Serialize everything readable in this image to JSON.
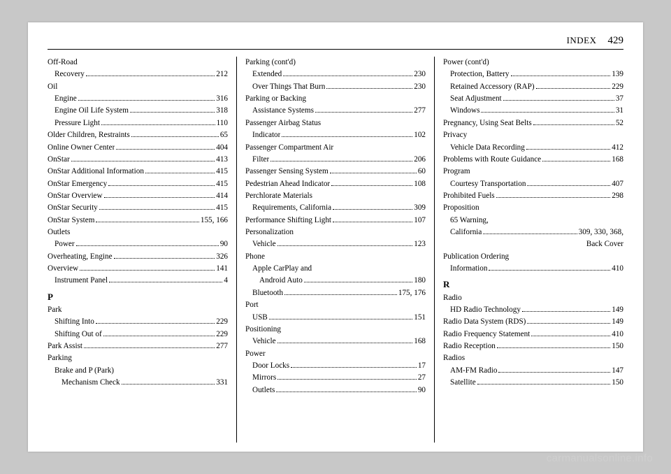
{
  "header": {
    "section": "INDEX",
    "page": "429"
  },
  "watermark": "carmanualsonline.info",
  "col1": [
    {
      "type": "plain",
      "text": "Off-Road"
    },
    {
      "type": "entry",
      "indent": 1,
      "label": "Recovery",
      "pg": "212"
    },
    {
      "type": "plain",
      "text": "Oil"
    },
    {
      "type": "entry",
      "indent": 1,
      "label": "Engine",
      "pg": "316"
    },
    {
      "type": "entry",
      "indent": 1,
      "label": "Engine Oil Life System",
      "pg": "318"
    },
    {
      "type": "entry",
      "indent": 1,
      "label": "Pressure Light",
      "pg": "110"
    },
    {
      "type": "entry",
      "indent": 0,
      "label": "Older Children, Restraints",
      "pg": "65"
    },
    {
      "type": "entry",
      "indent": 0,
      "label": "Online Owner Center",
      "pg": "404"
    },
    {
      "type": "entry",
      "indent": 0,
      "label": "OnStar",
      "pg": "413"
    },
    {
      "type": "entry",
      "indent": 0,
      "label": "OnStar Additional Information",
      "pg": "415"
    },
    {
      "type": "entry",
      "indent": 0,
      "label": "OnStar Emergency",
      "pg": "415"
    },
    {
      "type": "entry",
      "indent": 0,
      "label": "OnStar Overview",
      "pg": "414"
    },
    {
      "type": "entry",
      "indent": 0,
      "label": "OnStar Security",
      "pg": "415"
    },
    {
      "type": "entry",
      "indent": 0,
      "label": "OnStar System",
      "pg": "155, 166"
    },
    {
      "type": "plain",
      "text": "Outlets"
    },
    {
      "type": "entry",
      "indent": 1,
      "label": "Power",
      "pg": "90"
    },
    {
      "type": "entry",
      "indent": 0,
      "label": "Overheating, Engine",
      "pg": "326"
    },
    {
      "type": "entry",
      "indent": 0,
      "label": "Overview",
      "pg": "141"
    },
    {
      "type": "entry",
      "indent": 1,
      "label": "Instrument Panel",
      "pg": "4"
    },
    {
      "type": "letter",
      "text": "P"
    },
    {
      "type": "plain",
      "text": "Park"
    },
    {
      "type": "entry",
      "indent": 1,
      "label": "Shifting Into",
      "pg": "229"
    },
    {
      "type": "entry",
      "indent": 1,
      "label": "Shifting Out of",
      "pg": "229"
    },
    {
      "type": "entry",
      "indent": 0,
      "label": "Park Assist",
      "pg": "277"
    },
    {
      "type": "plain",
      "text": "Parking"
    },
    {
      "type": "plain-indent1",
      "text": "Brake and P (Park)"
    },
    {
      "type": "entry",
      "indent": 2,
      "label": "Mechanism Check",
      "pg": "331"
    }
  ],
  "col2": [
    {
      "type": "plain",
      "text": "Parking (cont'd)"
    },
    {
      "type": "entry",
      "indent": 1,
      "label": "Extended",
      "pg": "230"
    },
    {
      "type": "entry",
      "indent": 1,
      "label": "Over Things That Burn",
      "pg": "230"
    },
    {
      "type": "plain",
      "text": "Parking or Backing"
    },
    {
      "type": "entry",
      "indent": 1,
      "label": "Assistance Systems",
      "pg": "277"
    },
    {
      "type": "plain",
      "text": "Passenger Airbag Status"
    },
    {
      "type": "entry",
      "indent": 1,
      "label": "Indicator",
      "pg": "102"
    },
    {
      "type": "plain",
      "text": "Passenger Compartment Air"
    },
    {
      "type": "entry",
      "indent": 1,
      "label": "Filter",
      "pg": "206"
    },
    {
      "type": "entry",
      "indent": 0,
      "label": "Passenger Sensing System",
      "pg": "60"
    },
    {
      "type": "entry",
      "indent": 0,
      "label": "Pedestrian Ahead Indicator",
      "pg": "108"
    },
    {
      "type": "plain",
      "text": "Perchlorate Materials"
    },
    {
      "type": "entry",
      "indent": 1,
      "label": "Requirements, California",
      "pg": "309"
    },
    {
      "type": "entry",
      "indent": 0,
      "label": "Performance Shifting Light",
      "pg": "107"
    },
    {
      "type": "plain",
      "text": "Personalization"
    },
    {
      "type": "entry",
      "indent": 1,
      "label": "Vehicle",
      "pg": "123"
    },
    {
      "type": "plain",
      "text": "Phone"
    },
    {
      "type": "plain-indent1",
      "text": "Apple CarPlay and"
    },
    {
      "type": "entry",
      "indent": 2,
      "label": "Android Auto",
      "pg": "180"
    },
    {
      "type": "entry",
      "indent": 1,
      "label": "Bluetooth",
      "pg": "175, 176"
    },
    {
      "type": "plain",
      "text": "Port"
    },
    {
      "type": "entry",
      "indent": 1,
      "label": "USB",
      "pg": "151"
    },
    {
      "type": "plain",
      "text": "Positioning"
    },
    {
      "type": "entry",
      "indent": 1,
      "label": "Vehicle",
      "pg": "168"
    },
    {
      "type": "plain",
      "text": "Power"
    },
    {
      "type": "entry",
      "indent": 1,
      "label": "Door Locks",
      "pg": "17"
    },
    {
      "type": "entry",
      "indent": 1,
      "label": "Mirrors",
      "pg": "27"
    },
    {
      "type": "entry",
      "indent": 1,
      "label": "Outlets",
      "pg": "90"
    }
  ],
  "col3": [
    {
      "type": "plain",
      "text": "Power (cont'd)"
    },
    {
      "type": "entry",
      "indent": 1,
      "label": "Protection, Battery",
      "pg": "139"
    },
    {
      "type": "entry",
      "indent": 1,
      "label": "Retained Accessory (RAP)",
      "pg": "229"
    },
    {
      "type": "entry",
      "indent": 1,
      "label": "Seat Adjustment",
      "pg": "37"
    },
    {
      "type": "entry",
      "indent": 1,
      "label": "Windows",
      "pg": "31"
    },
    {
      "type": "entry",
      "indent": 0,
      "label": "Pregnancy, Using Seat Belts",
      "pg": "52"
    },
    {
      "type": "plain",
      "text": "Privacy"
    },
    {
      "type": "entry",
      "indent": 1,
      "label": "Vehicle Data Recording",
      "pg": "412"
    },
    {
      "type": "entry",
      "indent": 0,
      "label": "Problems with Route Guidance",
      "pg": "168"
    },
    {
      "type": "plain",
      "text": "Program"
    },
    {
      "type": "entry",
      "indent": 1,
      "label": "Courtesy Transportation",
      "pg": "407"
    },
    {
      "type": "entry",
      "indent": 0,
      "label": "Prohibited Fuels",
      "pg": "298"
    },
    {
      "type": "plain",
      "text": "Proposition"
    },
    {
      "type": "plain-indent1",
      "text": "65 Warning,"
    },
    {
      "type": "entry",
      "indent": 1,
      "label": "California",
      "pg": "309, 330, 368,"
    },
    {
      "type": "continuation",
      "text": "Back Cover"
    },
    {
      "type": "plain",
      "text": "Publication Ordering"
    },
    {
      "type": "entry",
      "indent": 1,
      "label": "Information",
      "pg": "410"
    },
    {
      "type": "letter",
      "text": "R"
    },
    {
      "type": "plain",
      "text": "Radio"
    },
    {
      "type": "entry",
      "indent": 1,
      "label": "HD Radio Technology",
      "pg": "149"
    },
    {
      "type": "entry",
      "indent": 0,
      "label": "Radio Data System (RDS)",
      "pg": "149"
    },
    {
      "type": "entry",
      "indent": 0,
      "label": "Radio Frequency Statement",
      "pg": "410"
    },
    {
      "type": "entry",
      "indent": 0,
      "label": "Radio Reception",
      "pg": "150"
    },
    {
      "type": "plain",
      "text": "Radios"
    },
    {
      "type": "entry",
      "indent": 1,
      "label": "AM-FM Radio",
      "pg": "147"
    },
    {
      "type": "entry",
      "indent": 1,
      "label": "Satellite",
      "pg": "150"
    }
  ]
}
